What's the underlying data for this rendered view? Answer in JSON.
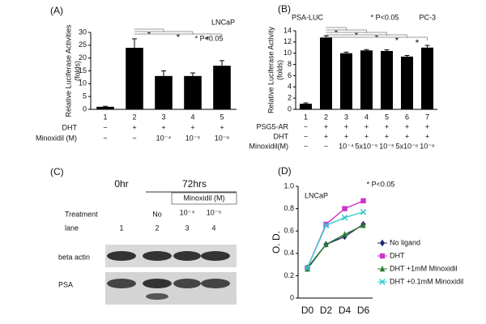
{
  "chart_data": [
    {
      "type": "bar",
      "panel_label": "(A)",
      "title": "LNCaP",
      "annotation": "* P<0.05",
      "ylabel": [
        "Relative Luciferase Activities",
        "(folds)"
      ],
      "categories": [
        "1",
        "2",
        "3",
        "4",
        "5"
      ],
      "values": [
        1,
        24,
        13,
        13,
        17
      ],
      "errors": [
        0.2,
        3.5,
        2,
        1.2,
        2
      ],
      "significance": [
        null,
        null,
        "*",
        "*",
        "*"
      ],
      "conditions": [
        {
          "label": "DHT",
          "values": [
            "−",
            "+",
            "+",
            "+",
            "+"
          ]
        },
        {
          "label": "Minoxidil (M)",
          "values": [
            "−",
            "−",
            "10⁻⁴",
            "10⁻⁵",
            "10⁻⁶"
          ]
        }
      ],
      "color": "#000000",
      "ylim": [
        0,
        30
      ],
      "yticks": [
        0,
        5,
        10,
        15,
        20,
        25,
        30
      ]
    },
    {
      "type": "bar",
      "panel_label": "(B)",
      "title": "PSA-LUC",
      "subtitle": "PC-3",
      "annotation": "* P<0.05",
      "ylabel": [
        "Relative Luciferase Activity",
        "(folds)"
      ],
      "categories": [
        "1",
        "2",
        "3",
        "4",
        "5",
        "6",
        "7"
      ],
      "values": [
        1,
        12.8,
        10,
        10.5,
        10.4,
        9.4,
        11
      ],
      "errors": [
        0.15,
        0.3,
        0.2,
        0.15,
        0.2,
        0.2,
        0.4
      ],
      "significance": [
        null,
        null,
        "*",
        "*",
        "*",
        "*",
        "*"
      ],
      "conditions": [
        {
          "label": "PSG5-AR",
          "values": [
            "−",
            "+",
            "+",
            "+",
            "+",
            "+",
            "+"
          ]
        },
        {
          "label": "DHT",
          "values": [
            "−",
            "+",
            "+",
            "+",
            "+",
            "+",
            "+"
          ]
        },
        {
          "label": "Minoxidil(M)",
          "values": [
            "−",
            "−",
            "10⁻⁴",
            "5x10⁻⁵",
            "10⁻⁵",
            "5x10⁻⁶",
            "10⁻⁶"
          ]
        }
      ],
      "color": "#000000",
      "ylim": [
        0,
        14
      ],
      "yticks": [
        0,
        2,
        4,
        6,
        8,
        10,
        12,
        14
      ]
    },
    {
      "type": "line",
      "panel_label": "(D)",
      "title": "LNCaP",
      "annotation": "* P<0.05",
      "ylabel": "O. D.",
      "categories": [
        "D0",
        "D2",
        "D4",
        "D6"
      ],
      "series": [
        {
          "name": "No ligand",
          "color": "#1f2a6b",
          "marker": "diamond",
          "values": [
            0.27,
            0.48,
            0.55,
            0.66
          ]
        },
        {
          "name": "DHT",
          "color": "#cc33cc",
          "marker": "square",
          "values": [
            0.27,
            0.66,
            0.8,
            0.87
          ]
        },
        {
          "name": "DHT +1mM Minoxidil",
          "color": "#2e7d32",
          "marker": "triangle",
          "values": [
            0.26,
            0.48,
            0.57,
            0.65
          ]
        },
        {
          "name": "DHT +0.1mM Minoxidil",
          "color": "#33cccc",
          "marker": "x",
          "values": [
            0.27,
            0.65,
            0.72,
            0.77
          ]
        }
      ],
      "ylim": [
        0,
        1
      ],
      "yticks": [
        0,
        {
          "value": 0.2,
          "label": "0.2"
        },
        {
          "value": 0.4,
          "label": "0.4"
        },
        {
          "value": 0.6,
          "label": "0.6"
        },
        {
          "value": 0.8,
          "label": "0.8"
        },
        {
          "value": 1,
          "label": "1.0"
        }
      ]
    }
  ],
  "blot": {
    "panel_label": "(C)",
    "time_labels": [
      "0hr",
      "72hrs"
    ],
    "drug_label": "Minoxidil (M)",
    "treatment_label": "Treatment",
    "treatments": [
      "No",
      "10⁻⁴",
      "10⁻⁵"
    ],
    "lane_label": "lane",
    "lanes": [
      "1",
      "2",
      "3",
      "4"
    ],
    "rows": [
      "beta actin",
      "PSA"
    ]
  }
}
